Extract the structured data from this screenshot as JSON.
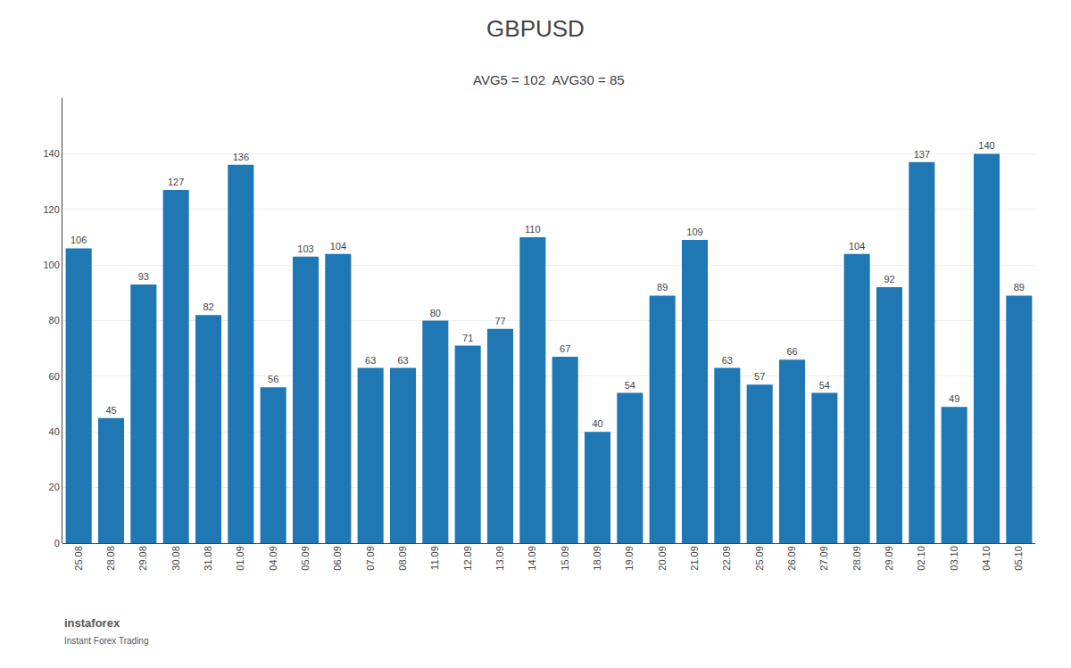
{
  "chart_data": {
    "type": "bar",
    "title": "GBPUSD",
    "subtitle": "AVG5 = 102  AVG30 = 85",
    "categories": [
      "25.08",
      "28.08",
      "29.08",
      "30.08",
      "31.08",
      "01.09",
      "04.09",
      "05.09",
      "06.09",
      "07.09",
      "08.09",
      "11.09",
      "12.09",
      "13.09",
      "14.09",
      "15.09",
      "18.09",
      "19.09",
      "20.09",
      "21.09",
      "22.09",
      "25.09",
      "26.09",
      "27.09",
      "28.09",
      "29.09",
      "02.10",
      "03.10",
      "04.10",
      "05.10"
    ],
    "values": [
      106,
      45,
      93,
      127,
      82,
      136,
      56,
      103,
      104,
      63,
      63,
      80,
      71,
      77,
      110,
      67,
      40,
      54,
      89,
      109,
      63,
      57,
      66,
      54,
      104,
      92,
      137,
      49,
      140,
      89
    ],
    "ylim": [
      0,
      160
    ],
    "yticks": [
      0,
      20,
      40,
      60,
      80,
      100,
      120,
      140
    ],
    "grid": true,
    "data_labels": true,
    "annotations": [
      "instaforex",
      "Instant Forex Trading"
    ]
  }
}
